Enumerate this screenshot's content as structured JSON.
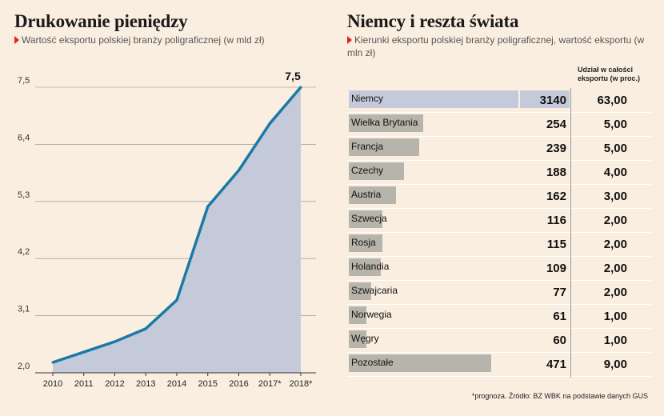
{
  "left": {
    "title": "Drukowanie pieniędzy",
    "subtitle": "Wartość eksportu polskiej branży poligraficznej (w mld zł)"
  },
  "right": {
    "title": "Niemcy i reszta świata",
    "subtitle": "Kierunki eksportu polskiej branży poligraficznej, wartość eksportu (w mln zł)",
    "share_header": "Udział w całości eksportu (w proc.)"
  },
  "footnote": "*prognoza. Źródło: BZ WBK na podstawie danych GUS",
  "colors": {
    "line": "#1a7aa6",
    "area": "#c5cadb",
    "bar": "#b7b4ab",
    "bar_highlight": "#c5cadb",
    "marker": "#e2231a",
    "background": "#faeee1"
  },
  "chart_data": [
    {
      "type": "area",
      "categories": [
        "2010",
        "2011",
        "2012",
        "2013",
        "2014",
        "2015",
        "2016",
        "2017*",
        "2018*"
      ],
      "values": [
        2.2,
        2.4,
        2.6,
        2.85,
        3.4,
        5.2,
        5.9,
        6.8,
        7.5
      ],
      "yticks": [
        "2,0",
        "3,1",
        "4,2",
        "5,3",
        "6,4",
        "7,5"
      ],
      "ylim": [
        2.0,
        7.5
      ],
      "annotation": "7,5",
      "grid": true
    },
    {
      "type": "bar",
      "categories": [
        "Niemcy",
        "Wielka Brytania",
        "Francja",
        "Czechy",
        "Austria",
        "Szwecja",
        "Rosja",
        "Holandia",
        "Szwajcaria",
        "Norwegia",
        "Węgry",
        "Pozostałe"
      ],
      "values": [
        3140,
        254,
        239,
        188,
        162,
        116,
        115,
        109,
        77,
        61,
        60,
        471
      ],
      "value_labels": [
        "3140",
        "254",
        "239",
        "188",
        "162",
        "116",
        "115",
        "109",
        "77",
        "61",
        "60",
        "471"
      ],
      "share_labels": [
        "63,00",
        "5,00",
        "5,00",
        "4,00",
        "3,00",
        "2,00",
        "2,00",
        "2,00",
        "2,00",
        "1,00",
        "1,00",
        "9,00"
      ]
    }
  ]
}
